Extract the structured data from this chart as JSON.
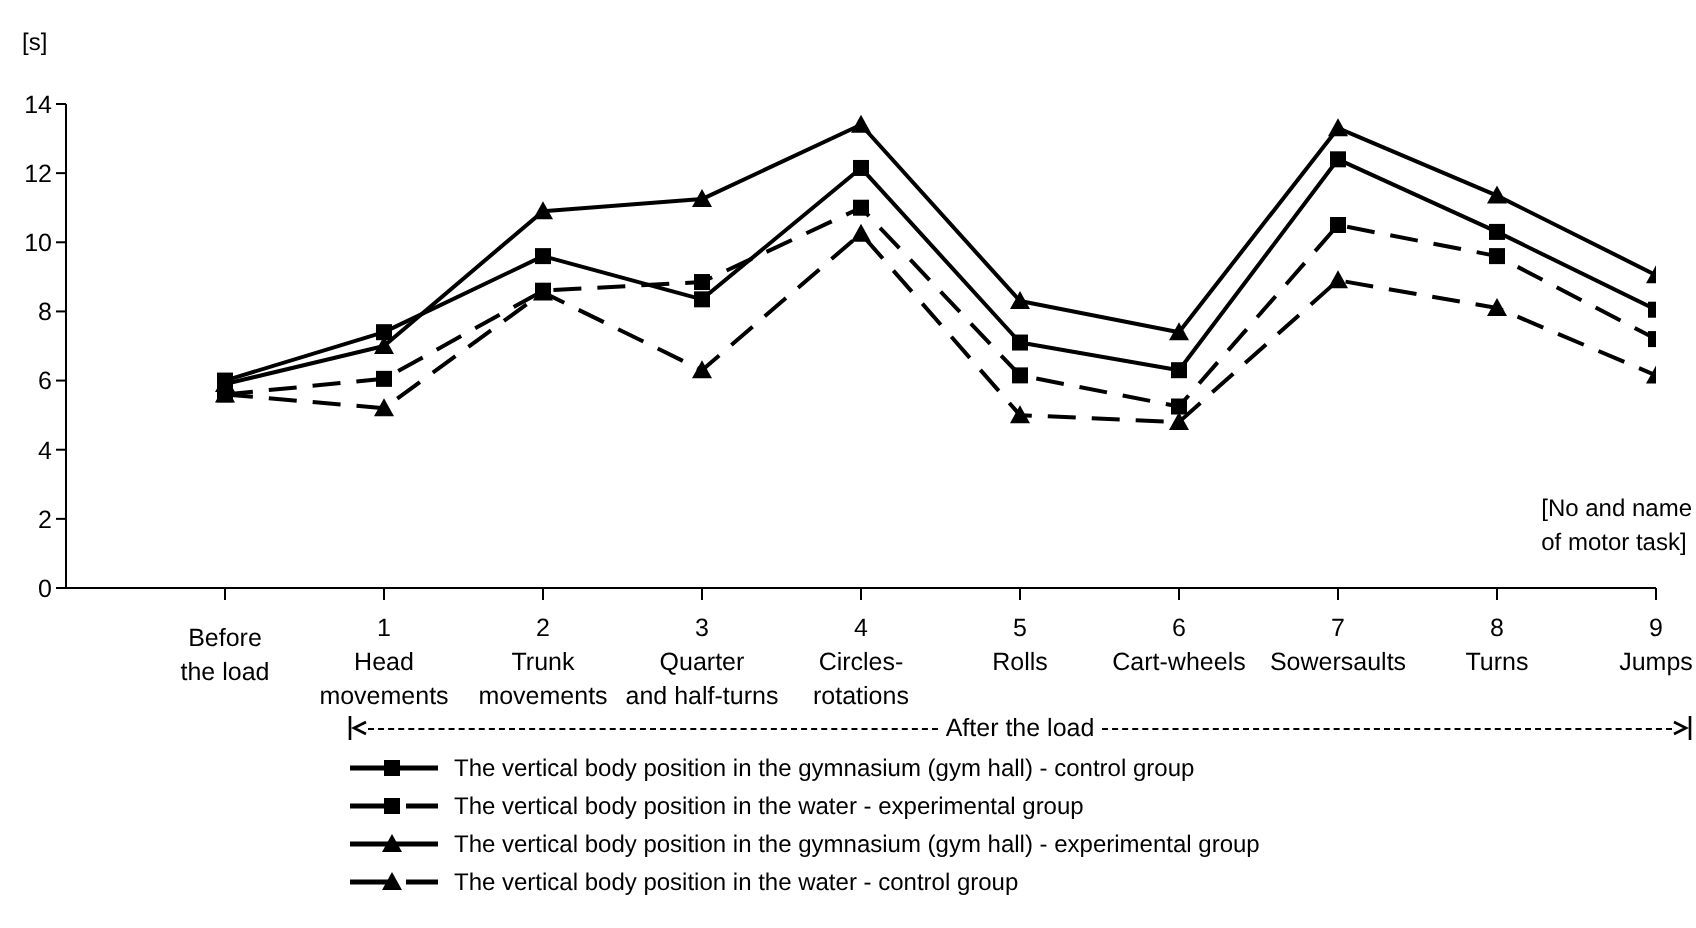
{
  "chart_data": {
    "type": "line",
    "ylabel": "[s]",
    "xlabel": "[No and name\nof motor task]",
    "categories": [
      "\nBefore\nthe load",
      "1\nHead\nmovements",
      "2\nTrunk\nmovements",
      "3\nQuarter\nand half-turns",
      "4\nCircles-\nrotations",
      "5\nRolls",
      "6\nCart-wheels",
      "7\nSowersaults",
      "8\nTurns",
      "9\nJumps"
    ],
    "series": [
      {
        "name": "The vertical body position in the gymnasium (gym hall) - control group",
        "color": "#000000",
        "marker": "square",
        "line_style": "solid",
        "values": [
          6.0,
          7.4,
          9.6,
          8.35,
          12.15,
          7.1,
          6.3,
          12.4,
          10.3,
          8.05
        ]
      },
      {
        "name": "The vertical body position in the water - experimental group",
        "color": "#000000",
        "marker": "square",
        "line_style": "dashed",
        "values": [
          5.6,
          6.05,
          8.6,
          8.85,
          11.0,
          6.15,
          5.25,
          10.5,
          9.6,
          7.2
        ]
      },
      {
        "name": "The vertical body position in the gymnasium (gym hall) - experimental group",
        "color": "#000000",
        "marker": "triangle",
        "line_style": "solid",
        "values": [
          5.9,
          7.0,
          10.9,
          11.25,
          13.4,
          8.3,
          7.4,
          13.3,
          11.35,
          9.05
        ]
      },
      {
        "name": "The vertical body position in the water - control group",
        "color": "#000000",
        "marker": "triangle",
        "line_style": "dashed",
        "values": [
          5.6,
          5.2,
          8.55,
          6.3,
          10.25,
          5.0,
          4.8,
          8.9,
          8.1,
          6.15
        ]
      }
    ],
    "ylim": [
      0,
      14
    ],
    "yticks": [
      0,
      2,
      4,
      6,
      8,
      10,
      12,
      14
    ],
    "legend": "bottom",
    "annotations": [
      "After the load"
    ]
  }
}
